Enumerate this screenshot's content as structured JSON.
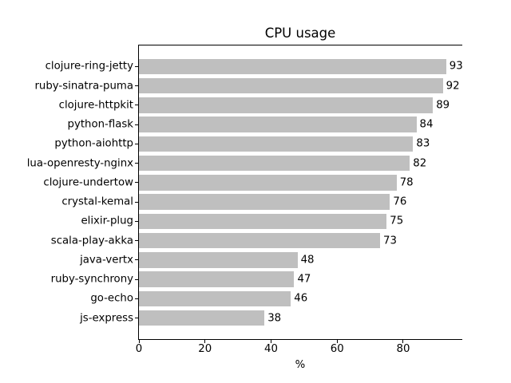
{
  "chart_data": {
    "type": "bar",
    "orientation": "horizontal",
    "title": "CPU usage",
    "xlabel": "%",
    "ylabel": "",
    "categories": [
      "clojure-ring-jetty",
      "ruby-sinatra-puma",
      "clojure-httpkit",
      "python-flask",
      "python-aiohttp",
      "lua-openresty-nginx",
      "clojure-undertow",
      "crystal-kemal",
      "elixir-plug",
      "scala-play-akka",
      "java-vertx",
      "ruby-synchrony",
      "go-echo",
      "js-express"
    ],
    "values": [
      93,
      92,
      89,
      84,
      83,
      82,
      78,
      76,
      75,
      73,
      48,
      47,
      46,
      38
    ],
    "xticks": [
      0,
      20,
      40,
      60,
      80
    ],
    "xlim": [
      0,
      97.65
    ],
    "grid": false,
    "legend": false,
    "bar_color": "#bfbfbf",
    "axis_color": "#000000",
    "text_color": "#000000",
    "background_color": "#ffffff"
  }
}
